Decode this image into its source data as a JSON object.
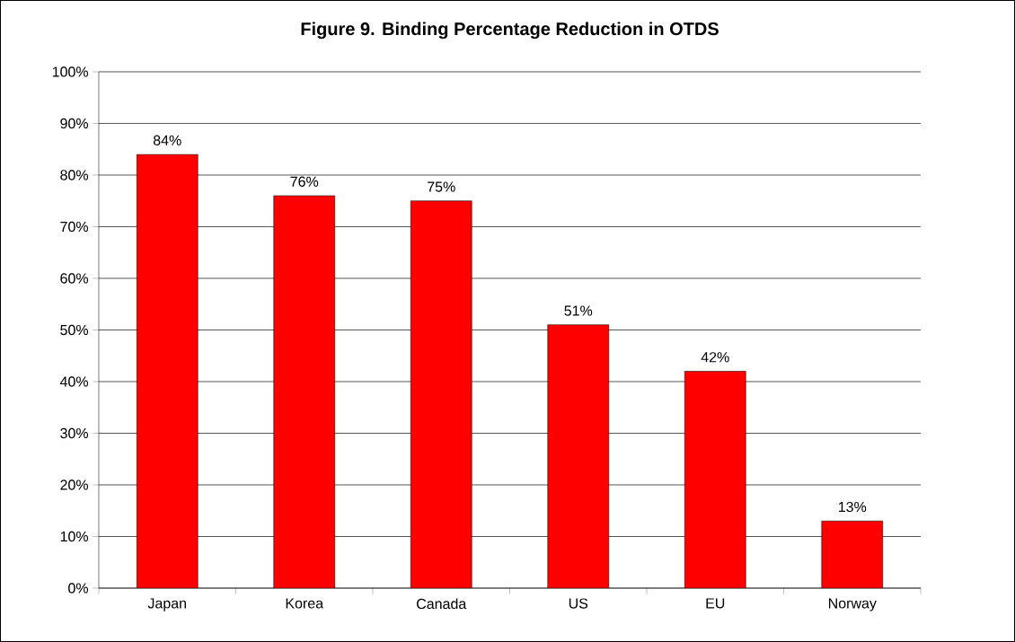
{
  "chart_data": {
    "type": "bar",
    "title": "Figure 9. Binding Percentage Reduction in OTDS",
    "categories": [
      "Japan",
      "Korea",
      "Canada",
      "US",
      "EU",
      "Norway"
    ],
    "values": [
      84,
      76,
      75,
      51,
      42,
      13
    ],
    "value_labels": [
      "84%",
      "76%",
      "75%",
      "51%",
      "42%",
      "13%"
    ],
    "color": "#ff0000",
    "ylim": [
      0,
      100
    ],
    "yticks": [
      {
        "value": 0,
        "label": "0%"
      },
      {
        "value": 10,
        "label": "10%"
      },
      {
        "value": 20,
        "label": "20%"
      },
      {
        "value": 30,
        "label": "30%"
      },
      {
        "value": 40,
        "label": "40%"
      },
      {
        "value": 50,
        "label": "50%"
      },
      {
        "value": 60,
        "label": "60%"
      },
      {
        "value": 70,
        "label": "70%"
      },
      {
        "value": 80,
        "label": "80%"
      },
      {
        "value": 90,
        "label": "90%"
      },
      {
        "value": 100,
        "label": "100%"
      }
    ],
    "grid": "y"
  }
}
